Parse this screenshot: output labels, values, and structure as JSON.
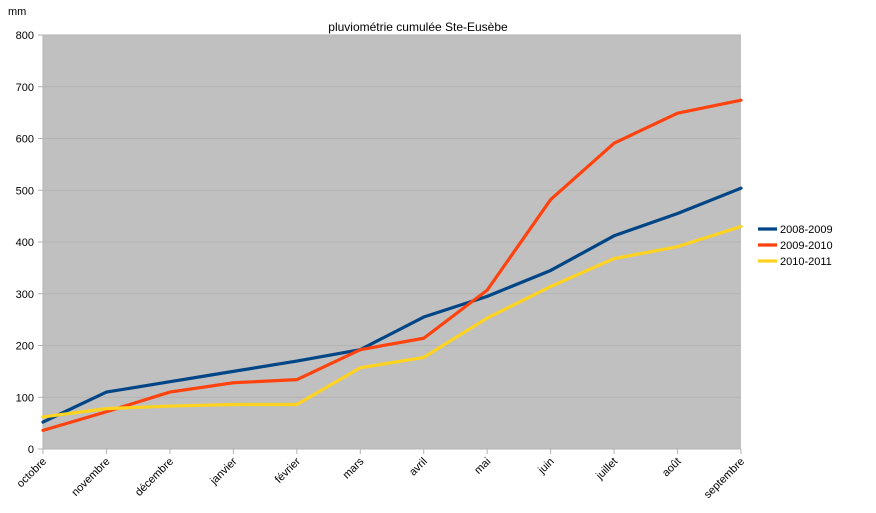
{
  "chart_data": {
    "type": "line",
    "title": "pluviométrie cumulée Ste-Eusèbe",
    "ylabel": "mm",
    "xlabel": "",
    "ylim": [
      0,
      800
    ],
    "yticks": [
      0,
      100,
      200,
      300,
      400,
      500,
      600,
      700,
      800
    ],
    "grid": true,
    "legend_position": "right",
    "plot_background": "#c0c0c0",
    "categories": [
      "octobre",
      "novembre",
      "décembre",
      "janvier",
      "février",
      "mars",
      "avril",
      "mai",
      "juin",
      "juillet",
      "août",
      "septembre"
    ],
    "series": [
      {
        "name": "2008-2009",
        "color": "#004586",
        "values": [
          52,
          110,
          130,
          150,
          170,
          192,
          255,
          295,
          345,
          412,
          455,
          504
        ]
      },
      {
        "name": "2009-2010",
        "color": "#ff420e",
        "values": [
          36,
          72,
          110,
          128,
          134,
          192,
          214,
          307,
          482,
          591,
          649,
          674
        ]
      },
      {
        "name": "2010-2011",
        "color": "#ffd320",
        "values": [
          62,
          78,
          83,
          86,
          86,
          157,
          177,
          253,
          314,
          368,
          391,
          430
        ]
      }
    ]
  }
}
